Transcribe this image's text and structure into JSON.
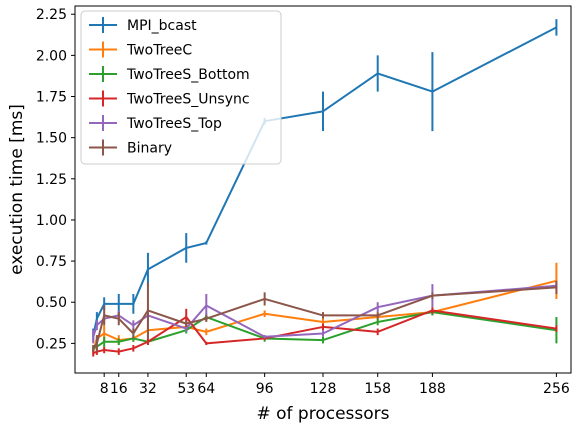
{
  "chart_data": {
    "type": "line",
    "xlabel": "# of processors",
    "ylabel": "execution time [ms]",
    "x": [
      2,
      4,
      8,
      16,
      24,
      32,
      53,
      64,
      96,
      128,
      158,
      188,
      256
    ],
    "xticks": [
      8,
      16,
      32,
      53,
      64,
      96,
      128,
      158,
      188,
      256
    ],
    "yticks": [
      0.25,
      0.5,
      0.75,
      1.0,
      1.25,
      1.5,
      1.75,
      2.0,
      2.25
    ],
    "xlim": [
      -8,
      264
    ],
    "ylim": [
      0.07,
      2.3
    ],
    "legend_position": "top-left",
    "grid": false,
    "series": [
      {
        "name": "MPI_bcast",
        "color": "#1f77b4",
        "values": [
          0.3,
          0.4,
          0.49,
          0.49,
          0.49,
          0.7,
          0.83,
          0.86,
          1.6,
          1.66,
          1.89,
          1.78,
          2.17
        ],
        "errors": [
          0.04,
          0.04,
          0.04,
          0.06,
          0.06,
          0.1,
          0.09,
          0.01,
          0.02,
          0.12,
          0.11,
          0.24,
          0.05
        ]
      },
      {
        "name": "TwoTreeC",
        "color": "#ff7f0e",
        "values": [
          0.2,
          0.28,
          0.31,
          0.27,
          0.28,
          0.33,
          0.35,
          0.32,
          0.43,
          0.38,
          0.41,
          0.44,
          0.63
        ],
        "errors": [
          0.02,
          0.02,
          0.05,
          0.03,
          0.02,
          0.04,
          0.02,
          0.02,
          0.02,
          0.02,
          0.02,
          0.02,
          0.11
        ]
      },
      {
        "name": "TwoTreeS_Bottom",
        "color": "#2ca02c",
        "values": [
          0.22,
          0.23,
          0.26,
          0.26,
          0.28,
          0.26,
          0.33,
          0.41,
          0.28,
          0.27,
          0.38,
          0.44,
          0.33
        ],
        "errors": [
          0.02,
          0.02,
          0.03,
          0.02,
          0.02,
          0.02,
          0.02,
          0.02,
          0.02,
          0.02,
          0.02,
          0.02,
          0.08
        ]
      },
      {
        "name": "TwoTreeS_Unsync",
        "color": "#d62728",
        "values": [
          0.19,
          0.2,
          0.21,
          0.2,
          0.22,
          0.26,
          0.41,
          0.25,
          0.28,
          0.35,
          0.32,
          0.45,
          0.34
        ],
        "errors": [
          0.02,
          0.02,
          0.02,
          0.02,
          0.02,
          0.02,
          0.05,
          0.01,
          0.01,
          0.02,
          0.02,
          0.02,
          0.02
        ]
      },
      {
        "name": "TwoTreeS_Top",
        "color": "#9467bd",
        "values": [
          0.29,
          0.36,
          0.4,
          0.42,
          0.36,
          0.42,
          0.34,
          0.48,
          0.29,
          0.31,
          0.47,
          0.54,
          0.6
        ],
        "errors": [
          0.04,
          0.03,
          0.03,
          0.03,
          0.03,
          0.04,
          0.02,
          0.07,
          0.01,
          0.02,
          0.03,
          0.07,
          0.02
        ]
      },
      {
        "name": "Binary",
        "color": "#8c564b",
        "values": [
          0.22,
          0.25,
          0.42,
          0.4,
          0.31,
          0.45,
          0.37,
          0.4,
          0.52,
          0.42,
          0.42,
          0.54,
          0.59
        ],
        "errors": [
          0.02,
          0.05,
          0.06,
          0.04,
          0.03,
          0.17,
          0.02,
          0.02,
          0.04,
          0.02,
          0.02,
          0.02,
          0.04
        ]
      }
    ]
  }
}
